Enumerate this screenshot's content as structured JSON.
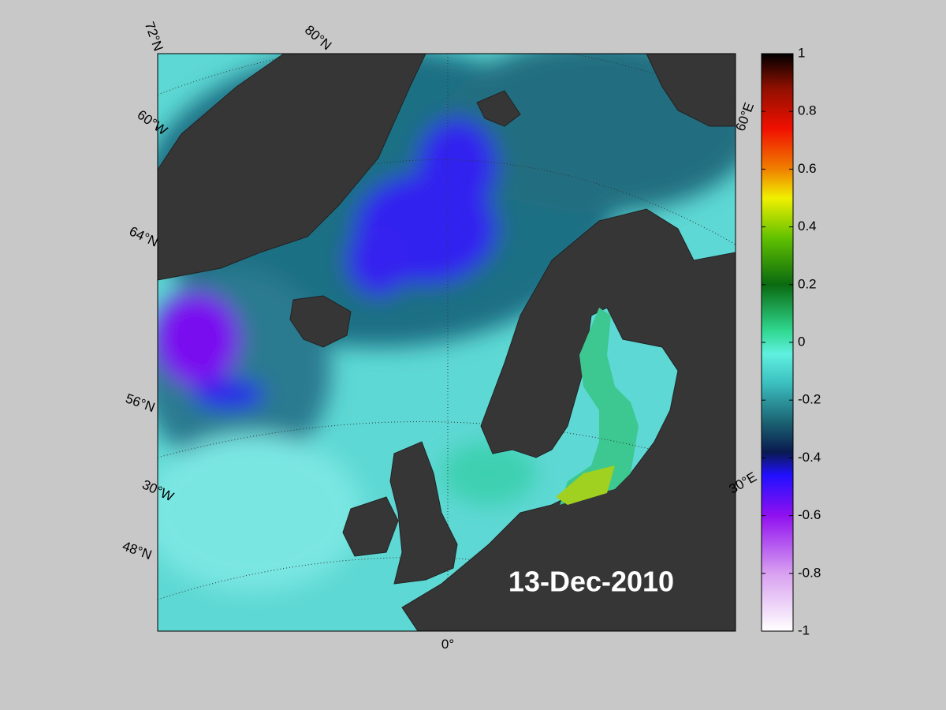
{
  "map": {
    "date": "13-Dec-2010",
    "graticule_labels": [
      "72°N",
      "80°N",
      "60°W",
      "64°N",
      "56°N",
      "30°W",
      "48°N",
      "0°",
      "60°E",
      "30°E"
    ]
  },
  "colorbar": {
    "lim": [
      -1,
      1
    ],
    "ticks": [
      -1,
      -0.8,
      -0.6,
      -0.4,
      -0.2,
      0,
      0.2,
      0.4,
      0.6,
      0.8,
      1
    ]
  }
}
